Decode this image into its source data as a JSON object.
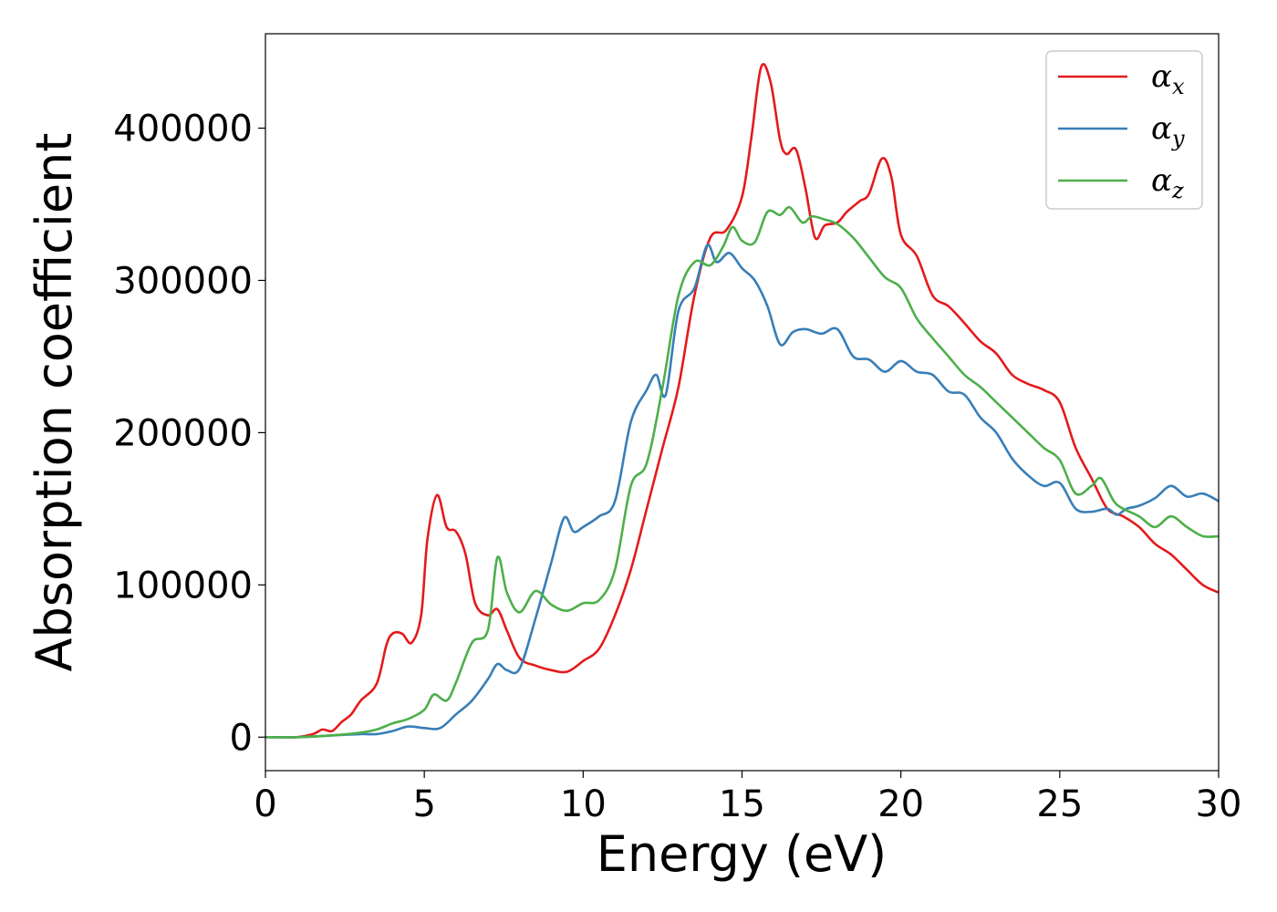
{
  "chart_data": {
    "type": "line",
    "title": "",
    "xlabel": "Energy (eV)",
    "ylabel": "Absorption coefficient",
    "xlim": [
      0,
      30
    ],
    "ylim": [
      -22000,
      462000
    ],
    "xticks": [
      0,
      5,
      10,
      15,
      20,
      25,
      30
    ],
    "yticks": [
      0,
      100000,
      200000,
      300000,
      400000
    ],
    "grid": false,
    "legend": "top-right",
    "series": [
      {
        "name": "α_x",
        "symbol": "α",
        "subscript": "x",
        "color": "#e41a1c",
        "x": [
          0,
          0.5,
          1.0,
          1.5,
          1.8,
          2.1,
          2.4,
          2.7,
          3.0,
          3.5,
          3.8,
          4.0,
          4.3,
          4.6,
          4.9,
          5.1,
          5.4,
          5.7,
          6.0,
          6.3,
          6.6,
          7.0,
          7.3,
          7.6,
          8.0,
          8.5,
          9.0,
          9.5,
          10.0,
          10.5,
          11.0,
          11.5,
          12.0,
          12.5,
          13.0,
          13.5,
          14.0,
          14.5,
          15.0,
          15.3,
          15.6,
          15.9,
          16.2,
          16.4,
          16.7,
          17.0,
          17.3,
          17.6,
          18.0,
          18.3,
          18.7,
          19.0,
          19.4,
          19.7,
          20.0,
          20.5,
          21.0,
          21.5,
          22.0,
          22.5,
          23.0,
          23.5,
          24.0,
          24.5,
          25.0,
          25.5,
          26.0,
          26.5,
          27.0,
          27.5,
          28.0,
          28.5,
          29.0,
          29.5,
          30.0
        ],
        "y": [
          0,
          0,
          0,
          2000,
          5000,
          4000,
          10000,
          15000,
          24000,
          35000,
          60000,
          68000,
          68000,
          62000,
          80000,
          130000,
          159000,
          138000,
          135000,
          120000,
          88000,
          80000,
          84000,
          70000,
          52000,
          47000,
          44000,
          43000,
          50000,
          58000,
          80000,
          110000,
          150000,
          190000,
          230000,
          290000,
          328000,
          333000,
          355000,
          395000,
          440000,
          430000,
          392000,
          383000,
          386000,
          360000,
          328000,
          336000,
          338000,
          345000,
          352000,
          357000,
          380000,
          368000,
          330000,
          316000,
          290000,
          283000,
          272000,
          260000,
          252000,
          238000,
          232000,
          228000,
          220000,
          190000,
          170000,
          150000,
          145000,
          138000,
          127000,
          120000,
          110000,
          100000,
          95000
        ]
      },
      {
        "name": "α_y",
        "symbol": "α",
        "subscript": "y",
        "color": "#377eb8",
        "x": [
          0,
          1.0,
          2.0,
          3.0,
          3.5,
          4.0,
          4.5,
          5.0,
          5.5,
          6.0,
          6.5,
          7.0,
          7.3,
          7.6,
          8.0,
          8.5,
          9.0,
          9.4,
          9.7,
          10.0,
          10.5,
          11.0,
          11.5,
          12.0,
          12.3,
          12.6,
          13.0,
          13.5,
          13.9,
          14.2,
          14.6,
          15.0,
          15.4,
          15.8,
          16.2,
          16.6,
          17.0,
          17.5,
          18.0,
          18.5,
          19.0,
          19.5,
          20.0,
          20.5,
          21.0,
          21.5,
          22.0,
          22.5,
          23.0,
          23.5,
          24.0,
          24.5,
          25.0,
          25.5,
          26.0,
          26.5,
          26.8,
          27.1,
          27.5,
          28.0,
          28.5,
          29.0,
          29.5,
          30.0
        ],
        "y": [
          0,
          0,
          1000,
          2000,
          2000,
          4000,
          7000,
          6000,
          6000,
          15000,
          24000,
          38000,
          48000,
          44000,
          45000,
          78000,
          115000,
          144000,
          135000,
          138000,
          145000,
          155000,
          207000,
          228000,
          238000,
          225000,
          280000,
          295000,
          323000,
          312000,
          318000,
          308000,
          300000,
          283000,
          258000,
          266000,
          268000,
          265000,
          268000,
          250000,
          248000,
          240000,
          247000,
          240000,
          238000,
          227000,
          225000,
          210000,
          200000,
          183000,
          172000,
          165000,
          167000,
          150000,
          148000,
          150000,
          146000,
          150000,
          152000,
          157000,
          165000,
          158000,
          160000,
          155000
        ]
      },
      {
        "name": "α_z",
        "symbol": "α",
        "subscript": "z",
        "color": "#4daf4a",
        "x": [
          0,
          1.0,
          2.0,
          3.0,
          3.5,
          4.0,
          4.5,
          5.0,
          5.3,
          5.7,
          6.0,
          6.5,
          7.0,
          7.3,
          7.6,
          8.0,
          8.5,
          9.0,
          9.5,
          10.0,
          10.5,
          11.0,
          11.5,
          12.0,
          12.5,
          13.0,
          13.5,
          14.0,
          14.4,
          14.7,
          15.0,
          15.4,
          15.8,
          16.2,
          16.5,
          16.9,
          17.2,
          17.6,
          18.0,
          18.5,
          19.0,
          19.5,
          20.0,
          20.5,
          21.0,
          21.5,
          22.0,
          22.5,
          23.0,
          23.5,
          24.0,
          24.5,
          25.0,
          25.5,
          26.0,
          26.3,
          26.7,
          27.0,
          27.5,
          28.0,
          28.5,
          29.0,
          29.5,
          30.0
        ],
        "y": [
          0,
          0,
          1000,
          3000,
          5000,
          9000,
          12000,
          18000,
          28000,
          24000,
          36000,
          62000,
          70000,
          118000,
          95000,
          82000,
          96000,
          87000,
          83000,
          88000,
          90000,
          110000,
          165000,
          180000,
          230000,
          290000,
          312000,
          310000,
          322000,
          335000,
          326000,
          325000,
          345000,
          343000,
          348000,
          338000,
          342000,
          340000,
          337000,
          328000,
          315000,
          302000,
          295000,
          275000,
          262000,
          250000,
          238000,
          230000,
          220000,
          210000,
          200000,
          190000,
          182000,
          160000,
          165000,
          170000,
          155000,
          150000,
          145000,
          138000,
          145000,
          138000,
          132000,
          132000
        ]
      }
    ]
  }
}
